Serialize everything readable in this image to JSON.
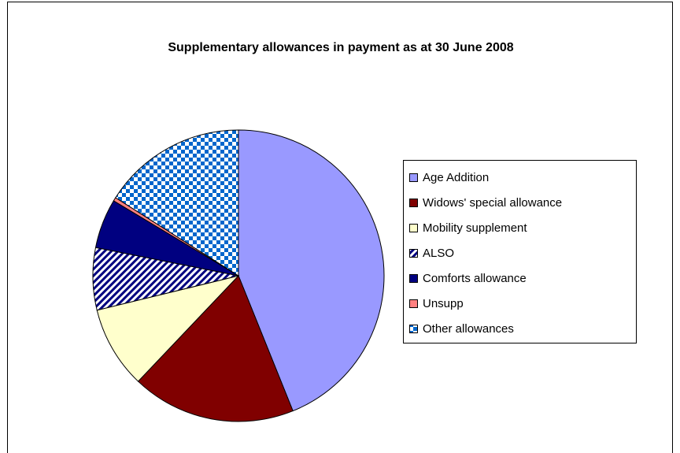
{
  "chart_data": {
    "type": "pie",
    "title": "Supplementary allowances in payment as at 30 June 2008",
    "categories": [
      "Age Addition",
      "Widows' special allowance",
      "Mobility supplement",
      "ALSO",
      "Comforts allowance",
      "Unsupp",
      "Other allowances"
    ],
    "values": [
      43.9,
      18.2,
      9.1,
      6.9,
      5.5,
      0.4,
      16.0
    ],
    "colors": [
      "#9999ff",
      "#800000",
      "#ffffcc",
      "#000080",
      "#000080",
      "#ff8080",
      "#0066cc"
    ],
    "patterns": [
      null,
      null,
      null,
      "stripes",
      null,
      null,
      "checker"
    ],
    "legend": "right"
  }
}
